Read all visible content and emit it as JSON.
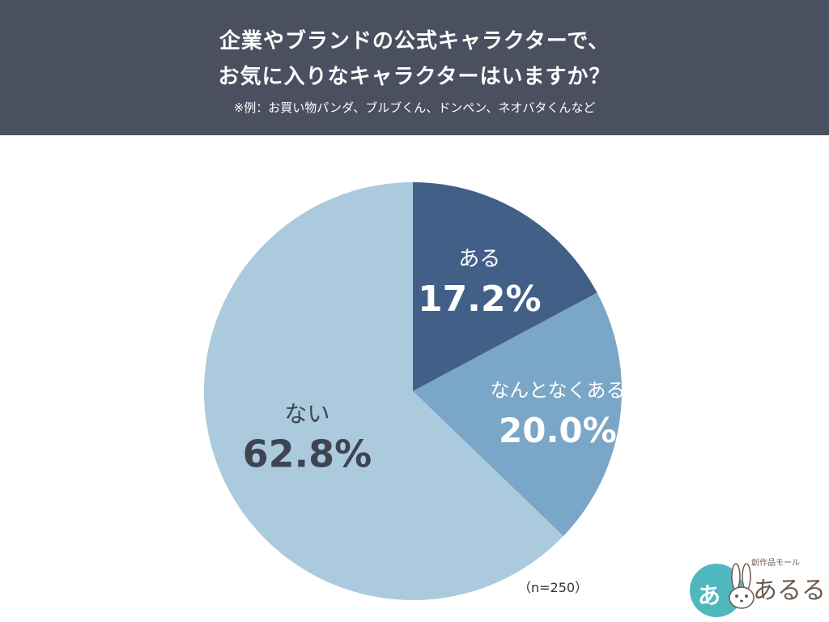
{
  "header": {
    "title_line1": "企業やブランドの公式キャラクターで、",
    "title_line2": "お気に入りなキャラクターはいますか？",
    "subtitle": "※例：お買い物パンダ、ブルブくん、ドンペン、ネオバタくんなど"
  },
  "footnote": "（n=250）",
  "logo": {
    "circle_text": "あ",
    "subtitle": "創作品モール",
    "name": "あるる"
  },
  "chart_data": {
    "type": "pie",
    "slices": [
      {
        "label": "ある",
        "value": 17.2,
        "display": "17.2%",
        "color": "#425f88",
        "text_color": "#ffffff"
      },
      {
        "label": "なんとなくある",
        "value": 20.0,
        "display": "20.0%",
        "color": "#7aa6c7",
        "text_color": "#ffffff"
      },
      {
        "label": "ない",
        "value": 62.8,
        "display": "62.8%",
        "color": "#abcadd",
        "text_color": "#3e4452"
      }
    ],
    "start": "12 o'clock",
    "direction": "clockwise"
  }
}
